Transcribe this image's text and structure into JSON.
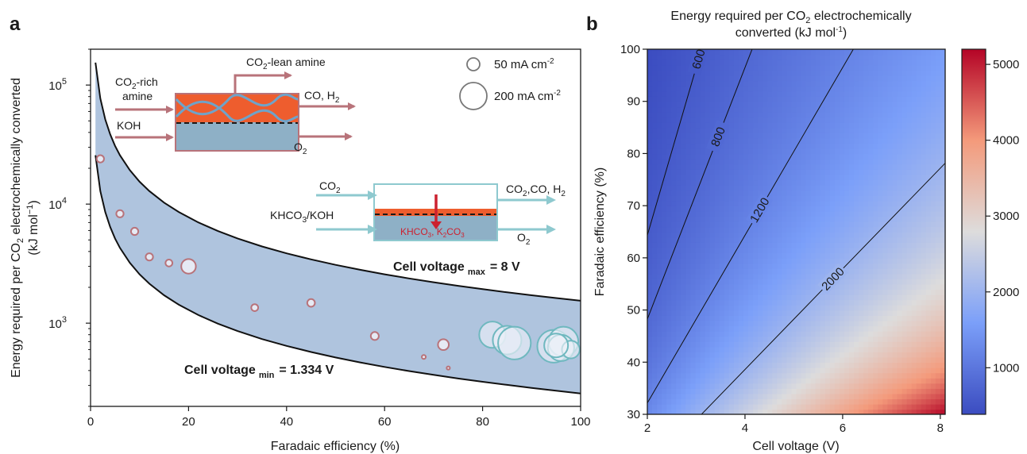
{
  "chart_data": [
    {
      "panel": "a",
      "type": "scatter",
      "xlabel": "Faradaic efficiency (%)",
      "ylabel_line1": "Energy required per CO",
      "ylabel_sub": "2",
      "ylabel_line1b": " electrochemically converted",
      "ylabel_line2": "(kJ mol",
      "ylabel_sup": "−1",
      "ylabel_line2b": ")",
      "yscale": "log",
      "xlim": [
        0,
        100
      ],
      "ylim": [
        200,
        200000
      ],
      "xticks": [
        "0",
        "20",
        "40",
        "60",
        "80",
        "100"
      ],
      "yticks": [
        {
          "base": "10",
          "exp": "3",
          "v": 1000
        },
        {
          "base": "10",
          "exp": "4",
          "v": 10000
        },
        {
          "base": "10",
          "exp": "5",
          "v": 100000
        }
      ],
      "band": {
        "lower_label": "Cell voltage",
        "lower_sub": "min",
        "lower_value": "= 1.334 V",
        "upper_label": "Cell voltage",
        "upper_sub": "max",
        "upper_value": "= 8 V",
        "x": [
          1,
          2,
          3,
          4,
          5,
          6,
          8,
          10,
          12,
          15,
          18,
          22,
          26,
          30,
          35,
          40,
          45,
          50,
          55,
          60,
          65,
          70,
          75,
          80,
          85,
          90,
          95,
          100
        ],
        "lower": [
          25740,
          12870,
          8580,
          6435,
          5148,
          4290,
          3218,
          2574,
          2145,
          1716,
          1430,
          1170,
          990,
          858,
          735,
          644,
          572,
          515,
          468,
          429,
          396,
          368,
          343,
          322,
          303,
          286,
          271,
          257
        ],
        "upper": [
          154400,
          77200,
          51470,
          38600,
          30880,
          25730,
          19300,
          15440,
          12870,
          10290,
          8578,
          7018,
          5938,
          5147,
          4411,
          3860,
          3431,
          3088,
          2807,
          2573,
          2375,
          2206,
          2059,
          1930,
          1816,
          1716,
          1625,
          1544
        ]
      },
      "points_pink": [
        {
          "x": 2,
          "y": 24000,
          "s": 1
        },
        {
          "x": 6,
          "y": 8300,
          "s": 1
        },
        {
          "x": 9,
          "y": 5900,
          "s": 1
        },
        {
          "x": 12,
          "y": 3600,
          "s": 1
        },
        {
          "x": 16,
          "y": 3200,
          "s": 0.9
        },
        {
          "x": 20,
          "y": 3000,
          "s": 4
        },
        {
          "x": 33.5,
          "y": 1350,
          "s": 0.9
        },
        {
          "x": 45,
          "y": 1480,
          "s": 1.1
        },
        {
          "x": 58,
          "y": 780,
          "s": 1.2
        },
        {
          "x": 72,
          "y": 660,
          "s": 2.2
        },
        {
          "x": 68,
          "y": 520,
          "s": 0.3
        },
        {
          "x": 73,
          "y": 420,
          "s": 0.2
        }
      ],
      "points_teal": [
        {
          "x": 82,
          "y": 800,
          "s": 11
        },
        {
          "x": 85,
          "y": 720,
          "s": 13
        },
        {
          "x": 86.5,
          "y": 680,
          "s": 17
        },
        {
          "x": 94.5,
          "y": 640,
          "s": 17
        },
        {
          "x": 96.5,
          "y": 700,
          "s": 14
        },
        {
          "x": 96,
          "y": 620,
          "s": 11
        },
        {
          "x": 98,
          "y": 600,
          "s": 5
        },
        {
          "x": 95,
          "y": 650,
          "s": 9
        }
      ],
      "legend": [
        {
          "label": "50 mA cm",
          "sup": "-2"
        },
        {
          "label": "200 mA cm",
          "sup": "-2"
        }
      ],
      "inset1": {
        "lean": "CO",
        "lean_sub": "2",
        "lean_rest": "-lean amine",
        "rich1": "CO",
        "rich1_sub": "2",
        "rich1_rest": "-rich",
        "rich2": "amine",
        "koh": "KOH",
        "products": "CO, H",
        "products_sub": "2",
        "o2": "O",
        "o2_sub": "2"
      },
      "inset2": {
        "co2": "CO",
        "co2_sub": "2",
        "feed": "KHCO",
        "feed_sub": "3",
        "feed_rest": "/KOH",
        "products": "CO",
        "products_sub": "2",
        "products_rest": ",CO, H",
        "products_sub2": "2",
        "o2": "O",
        "o2_sub": "2",
        "salt": "KHCO",
        "salt_sub": "3",
        "salt_mid": ", K",
        "salt_sub2": "2",
        "salt_mid2": "CO",
        "salt_sub3": "3"
      }
    },
    {
      "panel": "b",
      "type": "heatmap",
      "title_line1": "Energy required per CO",
      "title_sub": "2",
      "title_line1b": " electrochemically",
      "title_line2": "converted (kJ mol",
      "title_sup": "-1",
      "title_line2b": ")",
      "xlabel": "Cell voltage (V)",
      "ylabel": "Faradaic efficiency (%)",
      "xlim": [
        2,
        8.1
      ],
      "ylim": [
        30,
        100
      ],
      "xticks": [
        "2",
        "4",
        "6",
        "8"
      ],
      "yticks": [
        "30",
        "40",
        "50",
        "60",
        "70",
        "80",
        "90",
        "100"
      ],
      "colorbar": {
        "min": 386,
        "max": 5200,
        "ticks": [
          "1000",
          "2000",
          "3000",
          "4000",
          "5000"
        ]
      },
      "contours": [
        600,
        800,
        1200,
        2000
      ],
      "contour_labels": [
        "600",
        "800",
        "1200",
        "2000"
      ]
    }
  ],
  "panel_labels": {
    "a": "a",
    "b": "b"
  }
}
